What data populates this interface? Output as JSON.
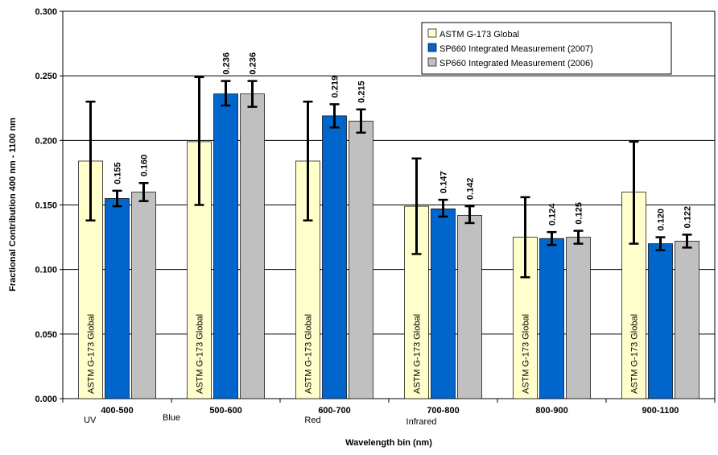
{
  "chart_data": {
    "type": "bar",
    "title": "",
    "xlabel": "Wavelength bin (nm)",
    "ylabel": "Fractional Contribution 400 nm - 1100 nm",
    "ylim": [
      0,
      0.3
    ],
    "y_ticks": [
      "0.000",
      "0.050",
      "0.100",
      "0.150",
      "0.200",
      "0.250",
      "0.300"
    ],
    "grid": true,
    "legend_position": "top-right",
    "categories": [
      "400-500",
      "500-600",
      "600-700",
      "700-800",
      "800-900",
      "900-1100"
    ],
    "band_labels": [
      "UV",
      "Blue",
      "Red",
      "Infrared"
    ],
    "series": [
      {
        "name": "ASTM G-173 Global",
        "color": "#ffffcc",
        "values": [
          0.184,
          0.199,
          0.184,
          0.149,
          0.125,
          0.16
        ],
        "error_low": [
          0.138,
          0.15,
          0.138,
          0.112,
          0.094,
          0.12
        ],
        "error_high": [
          0.23,
          0.249,
          0.23,
          0.186,
          0.156,
          0.199
        ],
        "bar_text": "ASTM G-173 Global"
      },
      {
        "name": "SP660 Integrated Measurement (2007)",
        "color": "#0066cc",
        "values": [
          0.155,
          0.236,
          0.219,
          0.147,
          0.124,
          0.12
        ],
        "error_low": [
          0.149,
          0.227,
          0.21,
          0.141,
          0.119,
          0.115
        ],
        "error_high": [
          0.161,
          0.246,
          0.228,
          0.154,
          0.129,
          0.125
        ],
        "data_labels": [
          "0.155",
          "0.236",
          "0.219",
          "0.147",
          "0.124",
          "0.120"
        ]
      },
      {
        "name": "SP660 Integrated Measurement (2006)",
        "color": "#c0c0c0",
        "values": [
          0.16,
          0.236,
          0.215,
          0.142,
          0.125,
          0.122
        ],
        "error_low": [
          0.153,
          0.226,
          0.206,
          0.136,
          0.12,
          0.117
        ],
        "error_high": [
          0.167,
          0.246,
          0.224,
          0.149,
          0.13,
          0.127
        ],
        "data_labels": [
          "0.160",
          "0.236",
          "0.215",
          "0.142",
          "0.125",
          "0.122"
        ]
      }
    ]
  }
}
